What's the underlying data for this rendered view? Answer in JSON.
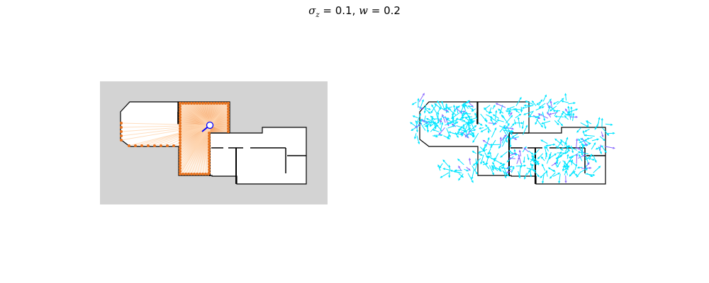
{
  "figure": {
    "title": {
      "sigma_symbol": "σ",
      "sigma_sub": "z",
      "sigma_eq": " =  ",
      "sigma_value": "0.1",
      "sep": ", ",
      "w_symbol": "w",
      "w_eq": " =  ",
      "w_value": "0.2"
    }
  },
  "colors": {
    "left_background": "#d3d3d3",
    "map_fill": "#ffffff",
    "wall": "#000000",
    "ray": "#ffd6b0",
    "hit_point": "#e8731f",
    "robot_marker": "#ffffff",
    "robot_heading": "#0000ff",
    "particle_main": "#00e5ff",
    "particle_alt": "#8a6bff"
  },
  "panels": {
    "left": {
      "content": "occupancy-map-with-laser-scan",
      "robot_heading": "south-west"
    },
    "right": {
      "content": "particle-cloud-on-map",
      "particle_shape": "arrow"
    }
  }
}
